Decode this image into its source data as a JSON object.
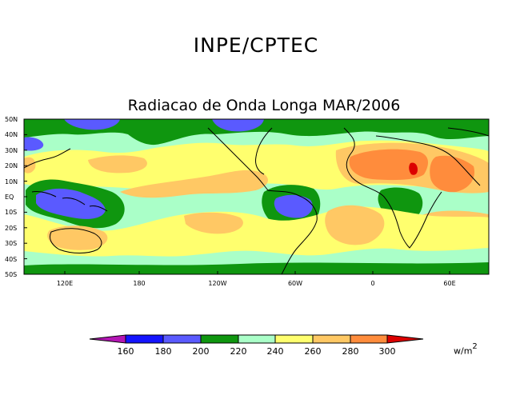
{
  "header": {
    "title": "INPE/CPTEC"
  },
  "map": {
    "title": "Radiacao de Onda Longa MAR/2006",
    "lat_labels": [
      "50N",
      "40N",
      "30N",
      "20N",
      "10N",
      "EQ",
      "10S",
      "20S",
      "30S",
      "40S",
      "50S"
    ],
    "lon_labels": [
      "120E",
      "180",
      "120W",
      "60W",
      "0",
      "60E"
    ]
  },
  "colorbar": {
    "labels": [
      "160",
      "180",
      "200",
      "220",
      "240",
      "260",
      "280",
      "300"
    ],
    "unit": "w/m",
    "unit_exp": "2",
    "colors": [
      "#b416b4",
      "#1414ff",
      "#5a5aff",
      "#0f960f",
      "#aaffc8",
      "#ffff6e",
      "#ffc864",
      "#ff8c3c",
      "#dc0000"
    ]
  }
}
